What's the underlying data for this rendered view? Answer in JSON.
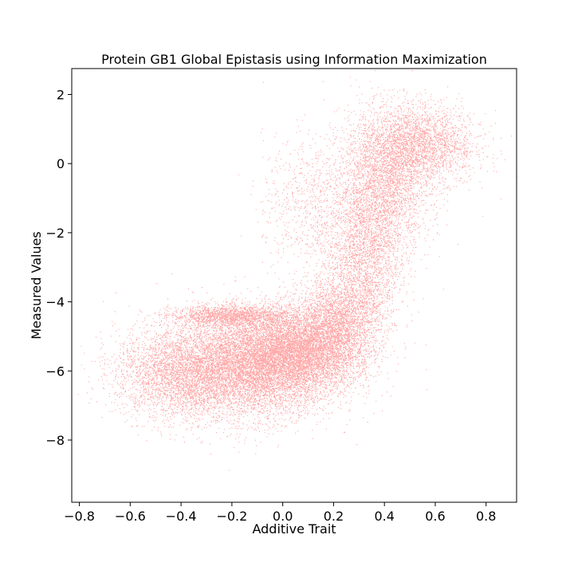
{
  "chart_data": {
    "type": "scatter",
    "title": "Protein GB1 Global Epistasis using Information Maximization",
    "xlabel": "Additive Trait",
    "ylabel": "Measured Values",
    "xlim": [
      -0.83,
      0.92
    ],
    "ylim": [
      -9.8,
      2.75
    ],
    "xticks": [
      -0.8,
      -0.6,
      -0.4,
      -0.2,
      0.0,
      0.2,
      0.4,
      0.6,
      0.8
    ],
    "xtick_labels": [
      "−0.8",
      "−0.6",
      "−0.4",
      "−0.2",
      "0.0",
      "0.2",
      "0.4",
      "0.6",
      "0.8"
    ],
    "yticks": [
      -8,
      -6,
      -4,
      -2,
      0,
      2
    ],
    "ytick_labels": [
      "−8",
      "−6",
      "−4",
      "−2",
      "0",
      "2"
    ],
    "grid": false,
    "legend": "none",
    "point_color": "#ff0000",
    "series": [
      {
        "clusters": [
          {
            "center": [
              -0.12,
              -5.85
            ],
            "spread": [
              0.16,
              0.75
            ],
            "weight": 0.44
          },
          {
            "center": [
              0.05,
              -5.4
            ],
            "spread": [
              0.12,
              0.6
            ],
            "weight": 0.18
          },
          {
            "center": [
              -0.4,
              -6.05
            ],
            "spread": [
              0.13,
              0.65
            ],
            "weight": 0.08
          },
          {
            "center": [
              0.22,
              -4.6
            ],
            "spread": [
              0.08,
              0.7
            ],
            "weight": 0.06
          },
          {
            "center": [
              0.32,
              -2.8
            ],
            "spread": [
              0.07,
              1.1
            ],
            "weight": 0.05
          },
          {
            "center": [
              0.4,
              -0.6
            ],
            "spread": [
              0.09,
              1.0
            ],
            "weight": 0.07
          },
          {
            "center": [
              0.5,
              0.6
            ],
            "spread": [
              0.1,
              0.6
            ],
            "weight": 0.04
          },
          {
            "center": [
              0.12,
              -1.2
            ],
            "spread": [
              0.1,
              1.0
            ],
            "weight": 0.02
          },
          {
            "center": [
              0.6,
              0.5
            ],
            "spread": [
              0.1,
              0.5
            ],
            "weight": 0.02
          },
          {
            "center": [
              -0.2,
              -4.4
            ],
            "spread": [
              0.12,
              0.15
            ],
            "weight": 0.04
          }
        ],
        "n_points": 42000
      }
    ]
  }
}
